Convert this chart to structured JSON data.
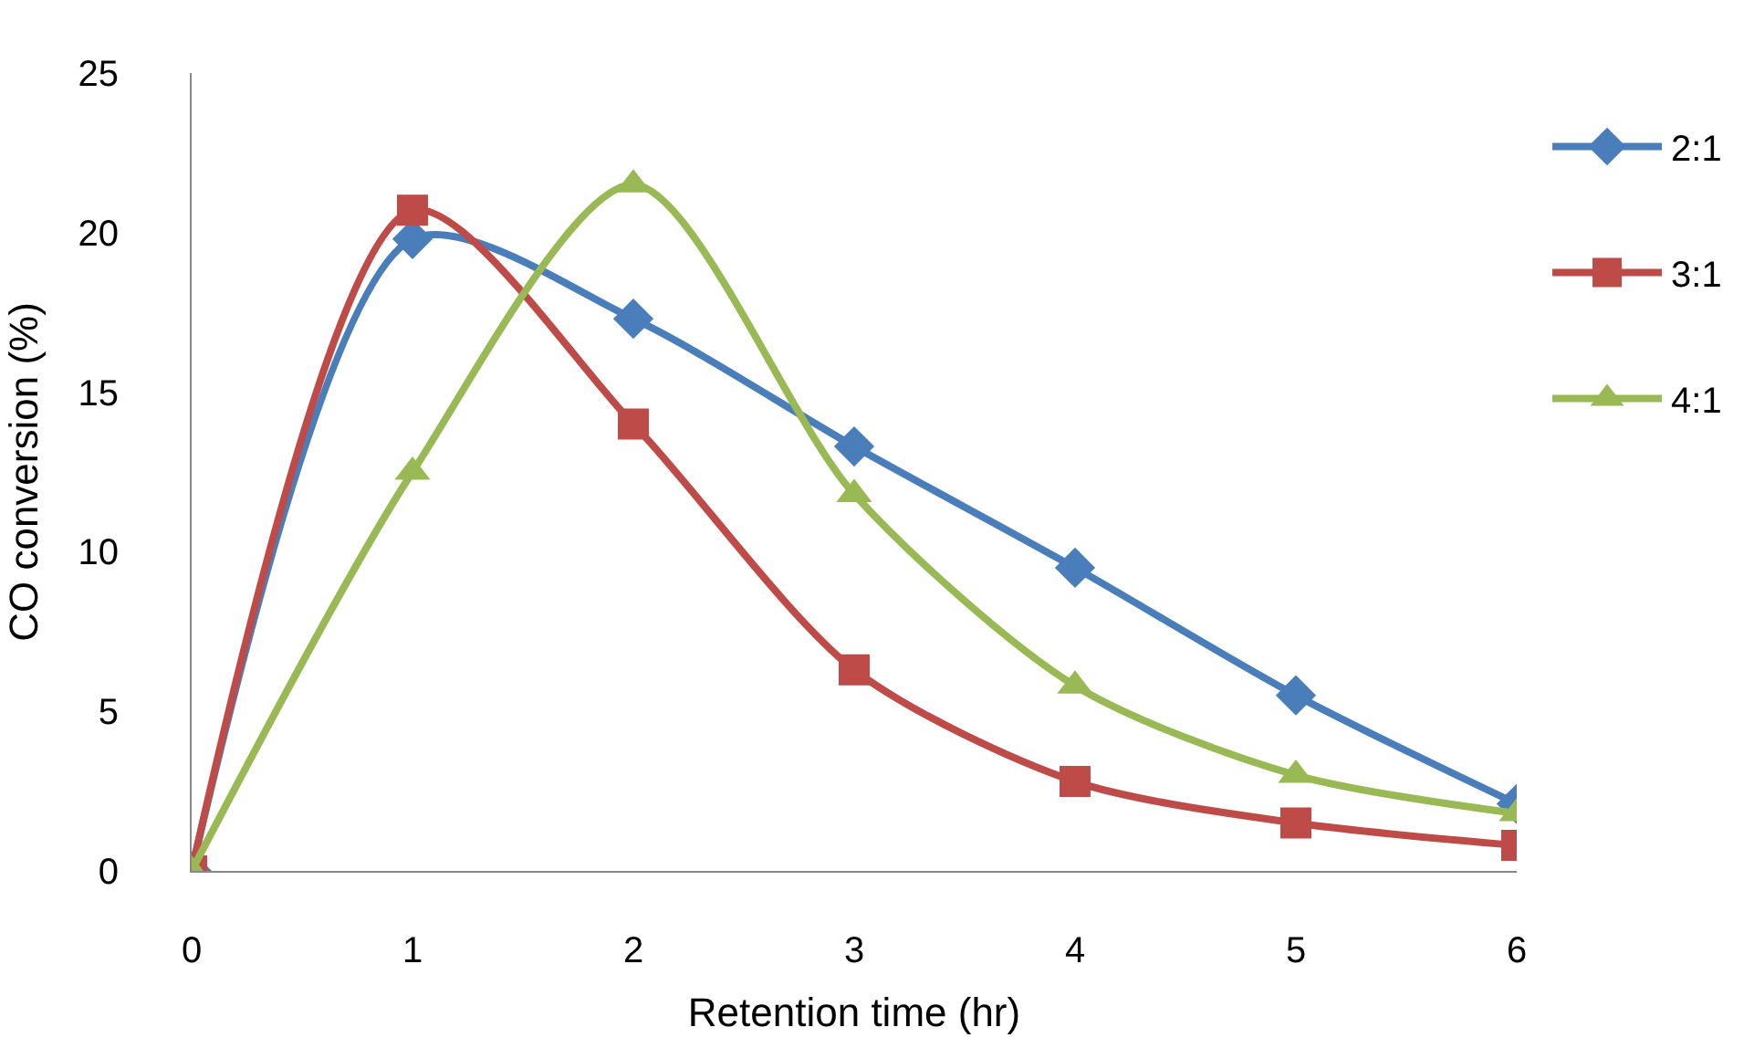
{
  "chart_data": {
    "type": "line",
    "xlabel": "Retention time (hr)",
    "ylabel": "CO conversion (%)",
    "x": [
      0,
      1,
      2,
      3,
      4,
      5,
      6
    ],
    "series": [
      {
        "name": "2:1",
        "color": "#4a7ebb",
        "marker": "diamond",
        "values": [
          0,
          19.8,
          17.3,
          13.3,
          9.5,
          5.5,
          2.1
        ]
      },
      {
        "name": "3:1",
        "color": "#be4b48",
        "marker": "square",
        "values": [
          0,
          20.7,
          14.0,
          6.3,
          2.8,
          1.5,
          0.8
        ]
      },
      {
        "name": "4:1",
        "color": "#98b954",
        "marker": "triangle",
        "values": [
          0,
          12.5,
          21.5,
          11.8,
          5.8,
          3.0,
          1.8
        ]
      }
    ],
    "xlim": [
      0,
      6
    ],
    "xticks": [
      0,
      1,
      2,
      3,
      4,
      5,
      6
    ],
    "ylim": [
      0,
      25
    ],
    "yticks": [
      0,
      5,
      10,
      15,
      20,
      25
    ],
    "legend": "right",
    "line_style": "solid"
  }
}
